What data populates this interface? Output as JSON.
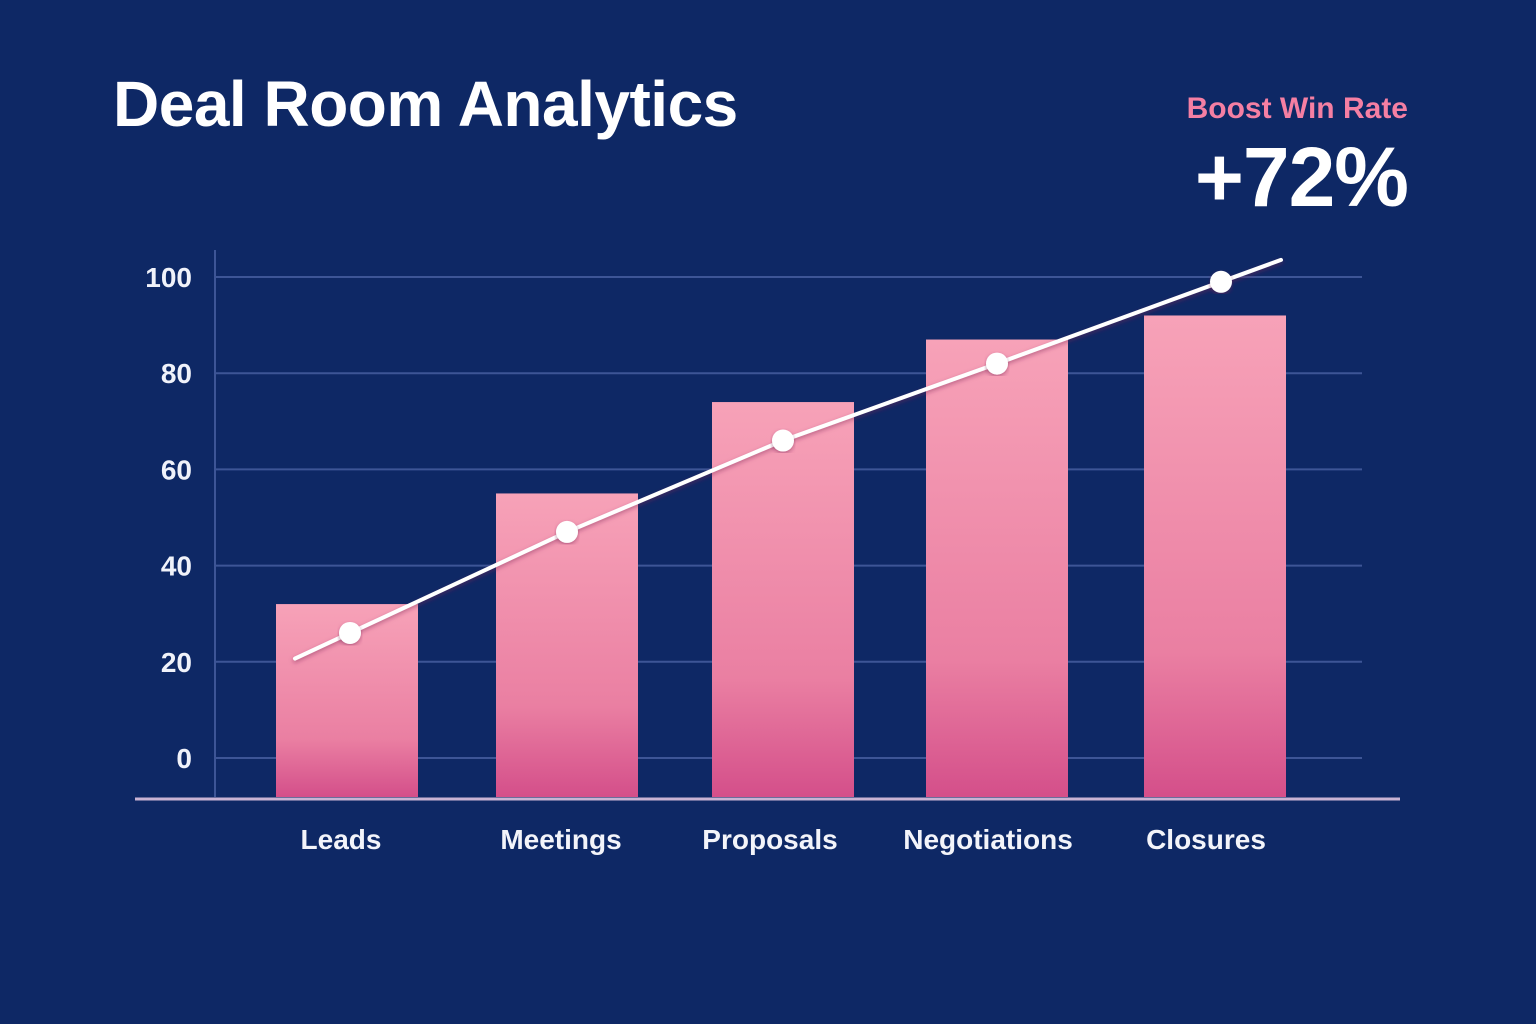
{
  "header": {
    "title": "Deal Room Analytics",
    "kpi_label": "Boost Win Rate",
    "kpi_value": "+72%"
  },
  "colors": {
    "background": "#0e2865",
    "bar_top": "#f7a2b8",
    "bar_bottom": "#d44f8a",
    "line": "#ffffff",
    "accent": "#f57fa3"
  },
  "chart_data": {
    "type": "bar",
    "categories": [
      "Leads",
      "Meetings",
      "Proposals",
      "Negotiations",
      "Closures"
    ],
    "series": [
      {
        "type": "bar",
        "values": [
          32,
          55,
          74,
          87,
          92
        ]
      },
      {
        "type": "line",
        "values": [
          26,
          47,
          66,
          82,
          99
        ]
      }
    ],
    "yticks": [
      0,
      20,
      40,
      60,
      80,
      100
    ],
    "ylim": [
      0,
      100
    ],
    "grid": true,
    "title": "",
    "xlabel": "",
    "ylabel": ""
  }
}
